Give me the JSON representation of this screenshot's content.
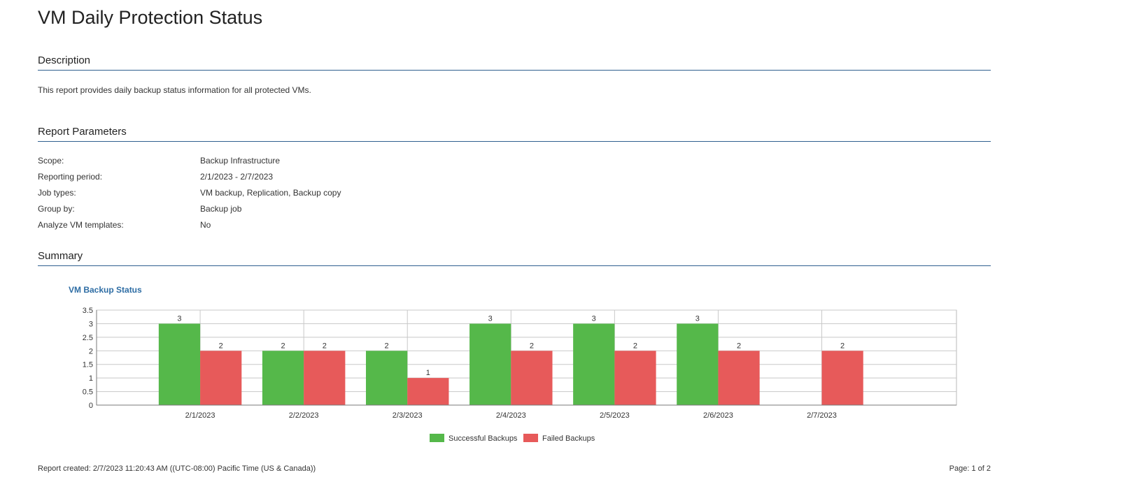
{
  "report": {
    "title": "VM Daily Protection Status"
  },
  "description": {
    "heading": "Description",
    "text": "This report provides daily backup status information for all protected VMs."
  },
  "parameters": {
    "heading": "Report Parameters",
    "rows": [
      {
        "label": "Scope:",
        "value": "Backup Infrastructure"
      },
      {
        "label": "Reporting period:",
        "value": "2/1/2023 - 2/7/2023"
      },
      {
        "label": "Job types:",
        "value": "VM backup, Replication, Backup copy"
      },
      {
        "label": "Group by:",
        "value": "Backup job"
      },
      {
        "label": "Analyze VM templates:",
        "value": "No"
      }
    ]
  },
  "summary": {
    "heading": "Summary"
  },
  "chart_data": {
    "type": "bar",
    "title": "VM Backup Status",
    "xlabel": "",
    "ylabel": "",
    "categories": [
      "2/1/2023",
      "2/2/2023",
      "2/3/2023",
      "2/4/2023",
      "2/5/2023",
      "2/6/2023",
      "2/7/2023"
    ],
    "series": [
      {
        "name": "Successful Backups",
        "color": "#55b84a",
        "values": [
          3,
          2,
          2,
          3,
          3,
          3,
          0
        ]
      },
      {
        "name": "Failed Backups",
        "color": "#e75a5a",
        "values": [
          2,
          2,
          1,
          2,
          2,
          2,
          2
        ]
      }
    ],
    "ylim": [
      0,
      3.5
    ],
    "yticks": [
      0,
      0.5,
      1,
      1.5,
      2,
      2.5,
      3,
      3.5
    ],
    "ytick_labels": [
      "0",
      "0.5",
      "1",
      "1.5",
      "2",
      "2.5",
      "3",
      "3.5"
    ],
    "grid": true,
    "legend_position": "bottom-center",
    "data_labels": true
  },
  "footer": {
    "created": "Report created: 2/7/2023 11:20:43 AM ((UTC-08:00) Pacific Time (US & Canada))",
    "page": "Page: 1 of 2"
  }
}
